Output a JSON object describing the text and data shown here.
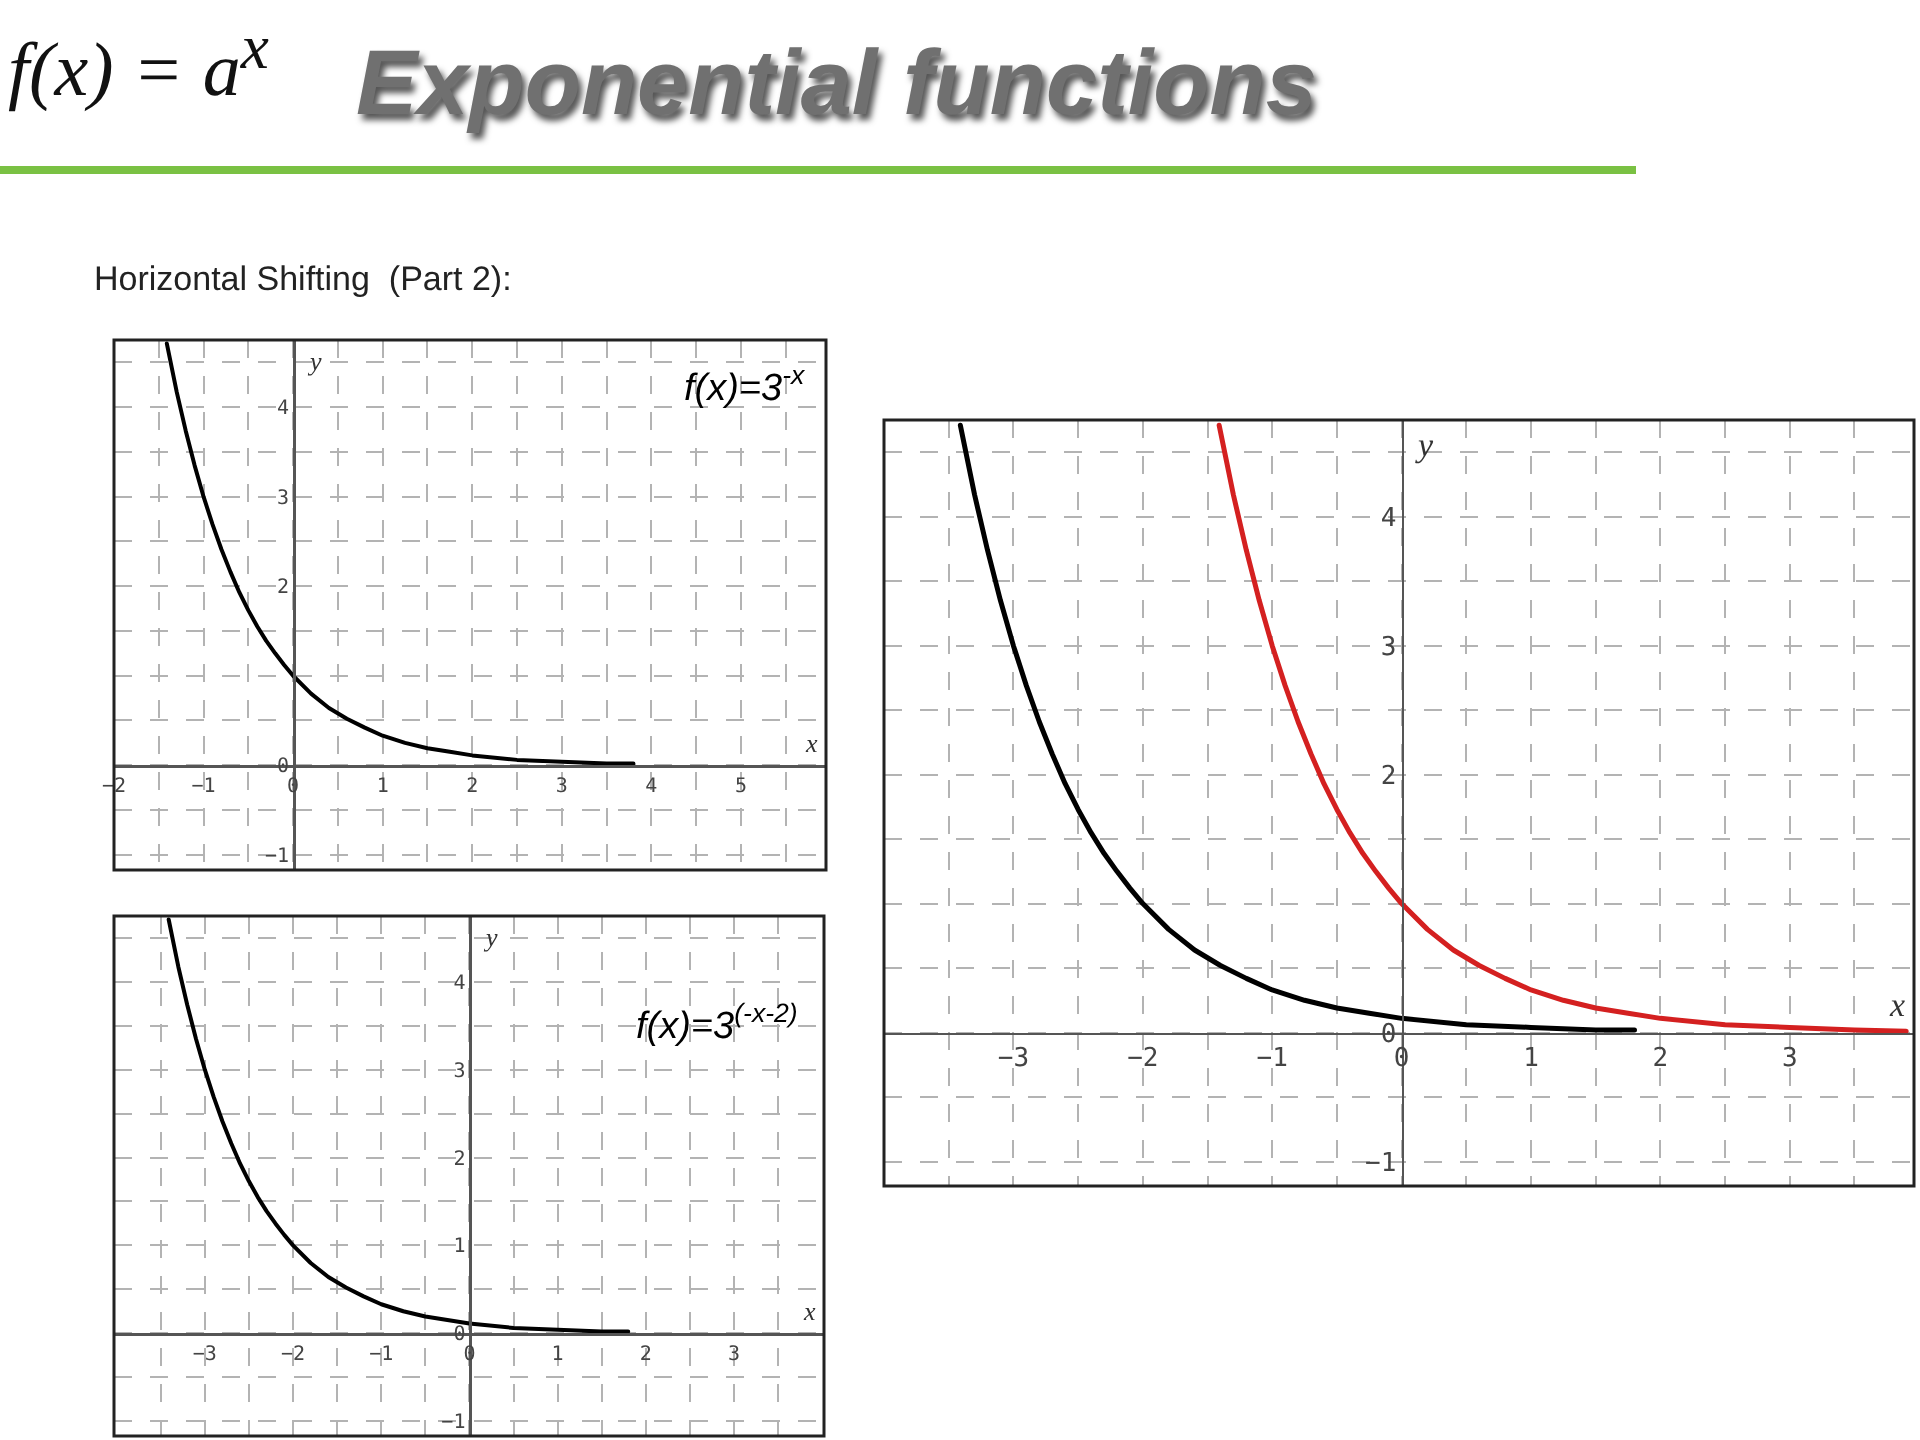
{
  "chart_data": [
    {
      "type": "line",
      "title": "Exponential functions",
      "subtitle": "Horizontal Shifting  (Part 2):",
      "annotations": [
        "f(x) = a$^{x}$"
      ],
      "xlabel": "x",
      "ylabel": "y",
      "xlim": [
        -2.0,
        5.95
      ],
      "ylim": [
        -1.17,
        4.75
      ],
      "xticks": [
        -2,
        {
          "value": -1.5,
          "label": null
        },
        -1,
        {
          "value": -0.5,
          "label": null
        },
        0,
        {
          "value": 0.5,
          "label": null
        },
        1,
        {
          "value": 1.5,
          "label": null
        },
        2,
        {
          "value": 2.5,
          "label": null
        },
        3,
        {
          "value": 3.5,
          "label": null
        },
        4,
        {
          "value": 4.5,
          "label": null
        },
        5,
        {
          "value": 5.5,
          "label": null
        }
      ],
      "yticks": [
        -1,
        {
          "value": -0.5,
          "label": null
        },
        0,
        {
          "value": 0.5,
          "label": null
        },
        {
          "value": 1,
          "label": null
        },
        {
          "value": 1.5,
          "label": null
        },
        2,
        {
          "value": 2.5,
          "label": null
        },
        3,
        {
          "value": 3.5,
          "label": null
        },
        4,
        {
          "value": 4.5,
          "label": null
        }
      ],
      "grid": true,
      "series": [
        {
          "name": "f(x)=3$^{-x}$",
          "color": "#000000",
          "x": [
            -1.41,
            -1.3,
            -1.2,
            -1.1,
            -1.0,
            -0.9,
            -0.8,
            -0.7,
            -0.6,
            -0.5,
            -0.4,
            -0.3,
            -0.2,
            -0.1,
            0,
            0.2,
            0.4,
            0.6,
            0.8,
            1.0,
            1.25,
            1.5,
            1.75,
            2.0,
            2.5,
            3.0,
            3.5,
            3.8
          ],
          "values": [
            4.71,
            4.17,
            3.74,
            3.35,
            3.0,
            2.69,
            2.41,
            2.16,
            1.93,
            1.73,
            1.55,
            1.39,
            1.25,
            1.12,
            1.0,
            0.8,
            0.64,
            0.52,
            0.42,
            0.33,
            0.25,
            0.19,
            0.15,
            0.11,
            0.06,
            0.04,
            0.02,
            0.02
          ]
        }
      ]
    },
    {
      "type": "line",
      "xlabel": "x",
      "ylabel": "y",
      "xlim": [
        -4.03,
        4.02
      ],
      "ylim": [
        -1.17,
        4.75
      ],
      "xticks": [
        {
          "value": -3.5,
          "label": null
        },
        -3,
        {
          "value": -2.5,
          "label": null
        },
        -2,
        {
          "value": -1.5,
          "label": null
        },
        -1,
        {
          "value": -0.5,
          "label": null
        },
        0,
        {
          "value": 0.5,
          "label": null
        },
        1,
        {
          "value": 1.5,
          "label": null
        },
        2,
        {
          "value": 2.5,
          "label": null
        },
        3,
        {
          "value": 3.5,
          "label": null
        }
      ],
      "yticks": [
        -1,
        {
          "value": -0.5,
          "label": null
        },
        0,
        {
          "value": 0.5,
          "label": null
        },
        1,
        {
          "value": 1.5,
          "label": null
        },
        2,
        {
          "value": 2.5,
          "label": null
        },
        3,
        {
          "value": 3.5,
          "label": null
        },
        4,
        {
          "value": 4.5,
          "label": null
        }
      ],
      "grid": true,
      "series": [
        {
          "name": "f(x)=3$^{(-x-2)}$",
          "color": "#000000",
          "x": [
            -3.41,
            -3.3,
            -3.2,
            -3.1,
            -3.0,
            -2.9,
            -2.8,
            -2.7,
            -2.6,
            -2.5,
            -2.4,
            -2.3,
            -2.2,
            -2.1,
            -2.0,
            -1.8,
            -1.6,
            -1.4,
            -1.2,
            -1.0,
            -0.75,
            -0.5,
            -0.25,
            0,
            0.5,
            1.0,
            1.5,
            1.8
          ],
          "values": [
            4.71,
            4.17,
            3.74,
            3.35,
            3.0,
            2.69,
            2.41,
            2.16,
            1.93,
            1.73,
            1.55,
            1.39,
            1.25,
            1.12,
            1.0,
            0.8,
            0.64,
            0.52,
            0.42,
            0.33,
            0.25,
            0.19,
            0.15,
            0.11,
            0.06,
            0.04,
            0.02,
            0.02
          ]
        }
      ]
    },
    {
      "type": "line",
      "xlabel": "x",
      "ylabel": "y",
      "xlim": [
        -4.0,
        3.96
      ],
      "ylim": [
        -1.19,
        4.75
      ],
      "xticks": [
        {
          "value": -3.5,
          "label": null
        },
        -3,
        {
          "value": -2.5,
          "label": null
        },
        -2,
        {
          "value": -1.5,
          "label": null
        },
        -1,
        {
          "value": -0.5,
          "label": null
        },
        0,
        {
          "value": 0.5,
          "label": null
        },
        1,
        {
          "value": 1.5,
          "label": null
        },
        2,
        {
          "value": 2.5,
          "label": null
        },
        3,
        {
          "value": 3.5,
          "label": null
        }
      ],
      "yticks": [
        -1,
        {
          "value": -0.5,
          "label": null
        },
        0,
        {
          "value": 0.5,
          "label": null
        },
        {
          "value": 1,
          "label": null
        },
        {
          "value": 1.5,
          "label": null
        },
        2,
        {
          "value": 2.5,
          "label": null
        },
        3,
        {
          "value": 3.5,
          "label": null
        },
        4,
        {
          "value": 4.5,
          "label": null
        }
      ],
      "grid": true,
      "series": [
        {
          "color": "#000000",
          "x": [
            -3.41,
            -3.3,
            -3.2,
            -3.1,
            -3.0,
            -2.9,
            -2.8,
            -2.7,
            -2.6,
            -2.5,
            -2.4,
            -2.3,
            -2.2,
            -2.1,
            -2.0,
            -1.8,
            -1.6,
            -1.4,
            -1.2,
            -1.0,
            -0.75,
            -0.5,
            -0.25,
            0,
            0.5,
            1.0,
            1.5,
            1.8
          ],
          "values": [
            4.71,
            4.17,
            3.74,
            3.35,
            3.0,
            2.69,
            2.41,
            2.16,
            1.93,
            1.73,
            1.55,
            1.39,
            1.25,
            1.12,
            1.0,
            0.8,
            0.64,
            0.52,
            0.42,
            0.33,
            0.25,
            0.19,
            0.15,
            0.11,
            0.06,
            0.04,
            0.02,
            0.02
          ]
        },
        {
          "color": "#d42020",
          "x": [
            -1.41,
            -1.3,
            -1.2,
            -1.1,
            -1.0,
            -0.9,
            -0.8,
            -0.7,
            -0.6,
            -0.5,
            -0.4,
            -0.3,
            -0.2,
            -0.1,
            0,
            0.2,
            0.4,
            0.6,
            0.8,
            1.0,
            1.25,
            1.5,
            1.75,
            2.0,
            2.5,
            3.0,
            3.5,
            3.9
          ],
          "values": [
            4.71,
            4.17,
            3.74,
            3.35,
            3.0,
            2.69,
            2.41,
            2.16,
            1.93,
            1.73,
            1.55,
            1.39,
            1.25,
            1.12,
            1.0,
            0.8,
            0.64,
            0.52,
            0.42,
            0.33,
            0.25,
            0.19,
            0.15,
            0.11,
            0.06,
            0.04,
            0.02,
            0.01
          ]
        }
      ]
    }
  ]
}
